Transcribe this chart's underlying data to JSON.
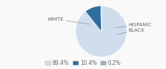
{
  "labels": [
    "WHITE",
    "BLACK",
    "HISPANIC"
  ],
  "values": [
    89.4,
    10.4,
    0.2
  ],
  "colors": [
    "#cfdded",
    "#2e6d9e",
    "#9ab0be"
  ],
  "legend_labels": [
    "89.4%",
    "10.4%",
    "0.2%"
  ],
  "legend_colors": [
    "#cfdded",
    "#2e6d9e",
    "#9ab0be"
  ],
  "startangle": 90,
  "label_fontsize": 5.2,
  "legend_fontsize": 5.5,
  "bg_color": "#f9f9f9",
  "text_color": "#666666",
  "line_color": "#999999"
}
